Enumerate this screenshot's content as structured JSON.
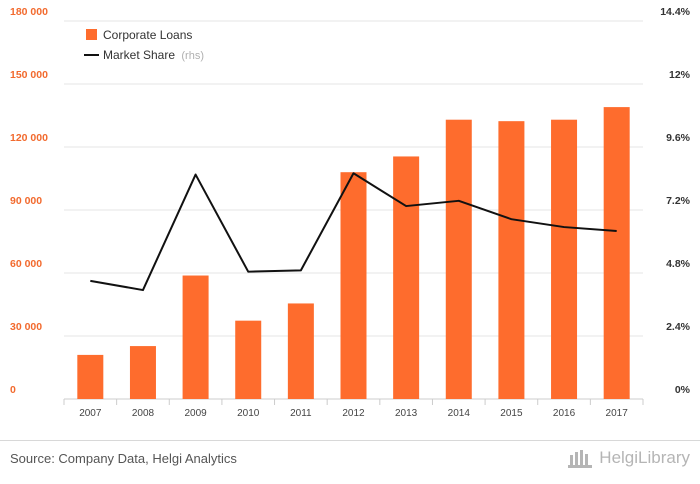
{
  "chart_data": {
    "type": "bar",
    "categories": [
      "2007",
      "2008",
      "2009",
      "2010",
      "2011",
      "2012",
      "2013",
      "2014",
      "2015",
      "2016",
      "2017"
    ],
    "series": [
      {
        "name": "Corporate Loans",
        "kind": "bar",
        "axis": "left",
        "color": "#fe6c2d",
        "values": [
          21000,
          25200,
          58800,
          37300,
          45500,
          108000,
          115500,
          133000,
          132300,
          133000,
          139000
        ]
      },
      {
        "name": "Market Share",
        "name_suffix": "(rhs)",
        "kind": "line",
        "axis": "right",
        "color": "#111111",
        "values": [
          4.5,
          4.15,
          8.55,
          4.85,
          4.9,
          8.6,
          7.35,
          7.55,
          6.85,
          6.55,
          6.4
        ]
      }
    ],
    "yleft": {
      "ylim": [
        0,
        180000
      ],
      "ticks": [
        "0",
        "30 000",
        "60 000",
        "90 000",
        "120 000",
        "150 000",
        "180 000"
      ]
    },
    "yright": {
      "ylim": [
        0,
        14.4
      ],
      "ticks": [
        "0%",
        "2.4%",
        "4.8%",
        "7.2%",
        "9.6%",
        "12%",
        "14.4%"
      ]
    },
    "legend_position": "top-left",
    "grid": true
  },
  "footer": {
    "source": "Source: Company Data, Helgi Analytics",
    "logo_text": "HelgiLibrary"
  }
}
